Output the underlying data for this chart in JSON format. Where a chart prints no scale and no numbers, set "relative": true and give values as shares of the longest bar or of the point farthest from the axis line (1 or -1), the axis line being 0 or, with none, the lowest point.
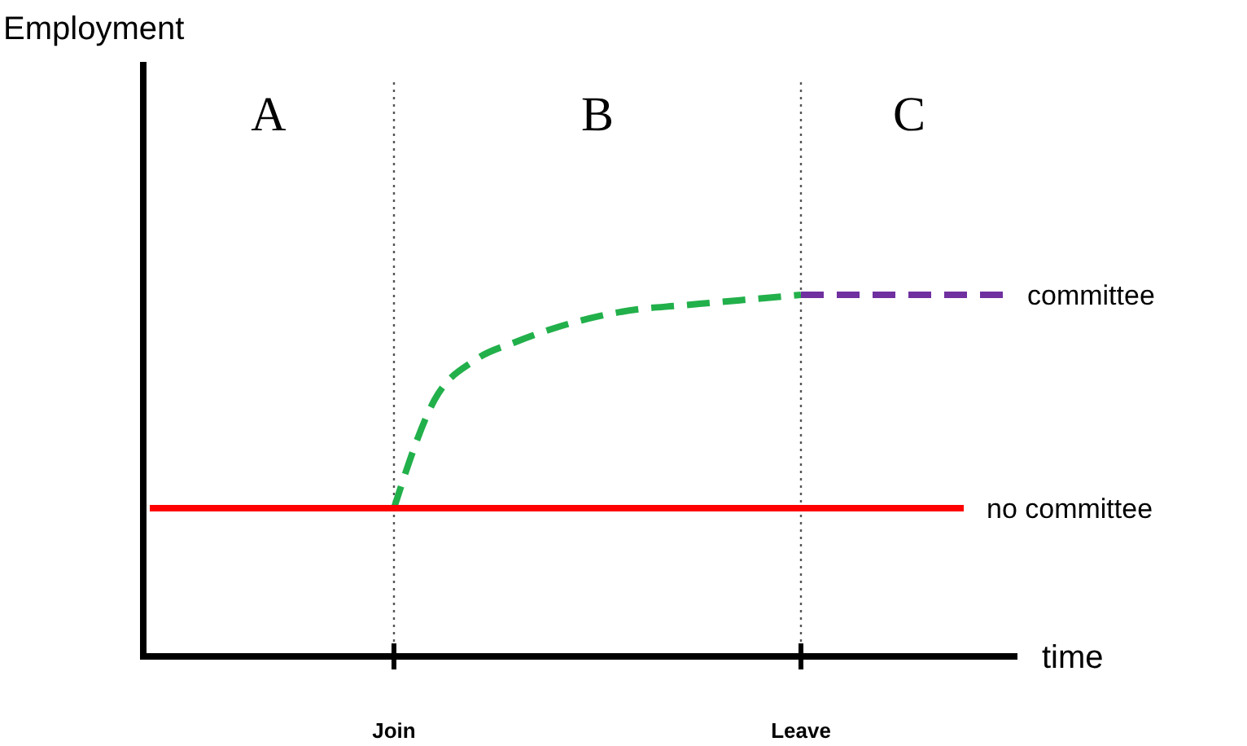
{
  "chart_data": {
    "type": "line",
    "relative": true,
    "xlabel": "time",
    "legend": false,
    "categories": [
      null,
      null,
      null,
      null,
      null,
      null,
      "Join",
      null,
      null,
      null,
      null,
      null,
      null,
      null,
      null,
      null,
      "Leave",
      null,
      null,
      null,
      null,
      null
    ],
    "annotations": [
      "Employment",
      "A",
      "B",
      "C"
    ],
    "ref_lines": [
      {
        "axis": "x",
        "value": "Join",
        "color": "#555555",
        "line_style": "dotted"
      },
      {
        "axis": "x",
        "value": "Leave",
        "color": "#555555",
        "line_style": "dotted"
      }
    ],
    "series": [
      {
        "color": "#22b04b",
        "line_style": "dashed",
        "values": [
          null,
          null,
          null,
          null,
          null,
          null,
          0.41,
          0.71,
          0.82,
          0.87,
          0.91,
          0.94,
          0.96,
          0.97,
          0.98,
          0.99,
          1,
          null,
          null,
          null,
          null,
          null
        ]
      },
      {
        "name": "committee",
        "color": "#7030a0",
        "line_style": "dashed",
        "values": [
          null,
          null,
          null,
          null,
          null,
          null,
          null,
          null,
          null,
          null,
          null,
          null,
          null,
          null,
          null,
          null,
          1,
          1,
          1,
          1,
          1,
          1
        ]
      },
      {
        "name": "no committee",
        "color": "#ff0000",
        "line_style": "solid",
        "values": [
          0.41,
          0.41,
          0.41,
          0.41,
          0.41,
          0.41,
          0.41,
          0.41,
          0.41,
          0.41,
          0.41,
          0.41,
          0.41,
          0.41,
          0.41,
          0.41,
          0.41,
          0.41,
          0.41,
          0.41,
          0.41,
          null
        ]
      }
    ]
  }
}
